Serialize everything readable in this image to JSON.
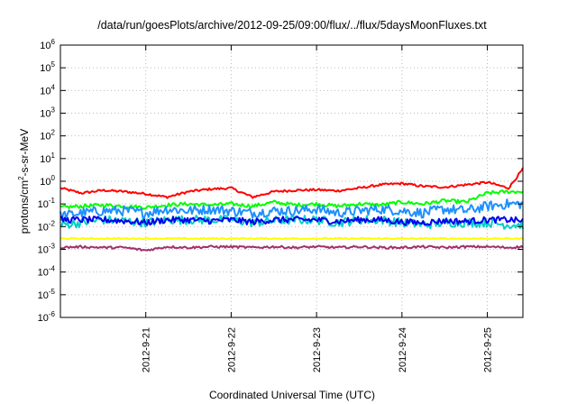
{
  "chart_data": {
    "type": "line",
    "title": "/data/run/goesPlots/archive/2012-09-25/09:00/flux/../flux/5daysMoonFluxes.txt",
    "xlabel": "Coordinated Universal Time (UTC)",
    "ylabel": "protons/cm²-s-sr-MeV",
    "yscale": "log",
    "ylim": [
      1e-06,
      1000000
    ],
    "xlim": [
      "2012-09-20 00:00",
      "2012-09-25 10:00"
    ],
    "x_ticks": [
      "2012-9-21",
      "2012-9-22",
      "2012-9-23",
      "2012-9-24",
      "2012-9-25"
    ],
    "y_ticks": [
      {
        "base": "10",
        "exp": "-6",
        "value": 1e-06
      },
      {
        "base": "10",
        "exp": "-5",
        "value": 1e-05
      },
      {
        "base": "10",
        "exp": "-4",
        "value": 0.0001
      },
      {
        "base": "10",
        "exp": "-3",
        "value": 0.001
      },
      {
        "base": "10",
        "exp": "-2",
        "value": 0.01
      },
      {
        "base": "10",
        "exp": "-1",
        "value": 0.1
      },
      {
        "base": "10",
        "exp": "0",
        "value": 1
      },
      {
        "base": "10",
        "exp": "1",
        "value": 10
      },
      {
        "base": "10",
        "exp": "2",
        "value": 100
      },
      {
        "base": "10",
        "exp": "3",
        "value": 1000
      },
      {
        "base": "10",
        "exp": "4",
        "value": 10000
      },
      {
        "base": "10",
        "exp": "5",
        "value": 100000
      },
      {
        "base": "10",
        "exp": "6",
        "value": 1000000
      }
    ],
    "grid": true,
    "x": [
      "2012-09-20 00:00",
      "2012-09-20 06:00",
      "2012-09-20 12:00",
      "2012-09-20 18:00",
      "2012-09-21 00:00",
      "2012-09-21 06:00",
      "2012-09-21 12:00",
      "2012-09-21 18:00",
      "2012-09-22 00:00",
      "2012-09-22 06:00",
      "2012-09-22 12:00",
      "2012-09-22 18:00",
      "2012-09-23 00:00",
      "2012-09-23 06:00",
      "2012-09-23 12:00",
      "2012-09-23 18:00",
      "2012-09-24 00:00",
      "2012-09-24 06:00",
      "2012-09-24 12:00",
      "2012-09-24 18:00",
      "2012-09-25 00:00",
      "2012-09-25 06:00",
      "2012-09-25 10:00"
    ],
    "series": [
      {
        "color": "#ff0000",
        "noise": 0.05,
        "values": [
          0.5,
          0.3,
          0.4,
          0.35,
          0.28,
          0.2,
          0.35,
          0.45,
          0.5,
          0.2,
          0.35,
          0.4,
          0.42,
          0.38,
          0.5,
          0.7,
          0.8,
          0.6,
          0.55,
          0.7,
          0.9,
          0.5,
          3.5
        ]
      },
      {
        "color": "#00ff00",
        "noise": 0.08,
        "values": [
          0.07,
          0.08,
          0.09,
          0.08,
          0.07,
          0.09,
          0.1,
          0.09,
          0.1,
          0.08,
          0.12,
          0.09,
          0.1,
          0.08,
          0.1,
          0.09,
          0.12,
          0.1,
          0.14,
          0.12,
          0.3,
          0.35,
          0.35
        ]
      },
      {
        "color": "#1e90ff",
        "noise": 0.22,
        "values": [
          0.03,
          0.04,
          0.05,
          0.05,
          0.04,
          0.06,
          0.05,
          0.06,
          0.05,
          0.04,
          0.05,
          0.05,
          0.06,
          0.04,
          0.05,
          0.06,
          0.05,
          0.04,
          0.06,
          0.05,
          0.08,
          0.1,
          0.1
        ]
      },
      {
        "color": "#00d0c8",
        "noise": 0.2,
        "values": [
          0.012,
          0.015,
          0.02,
          0.018,
          0.015,
          0.02,
          0.02,
          0.02,
          0.02,
          0.015,
          0.018,
          0.02,
          0.02,
          0.015,
          0.02,
          0.02,
          0.015,
          0.012,
          0.015,
          0.015,
          0.015,
          0.012,
          0.012
        ]
      },
      {
        "color": "#0000ee",
        "noise": 0.14,
        "values": [
          0.02,
          0.02,
          0.02,
          0.018,
          0.015,
          0.02,
          0.02,
          0.018,
          0.02,
          0.016,
          0.02,
          0.02,
          0.02,
          0.017,
          0.02,
          0.02,
          0.016,
          0.015,
          0.018,
          0.017,
          0.02,
          0.02,
          0.018
        ]
      },
      {
        "color": "#ffff00",
        "noise": 0.03,
        "values": [
          0.003,
          0.003,
          0.003,
          0.003,
          0.003,
          0.003,
          0.003,
          0.003,
          0.003,
          0.003,
          0.003,
          0.003,
          0.003,
          0.003,
          0.003,
          0.003,
          0.003,
          0.003,
          0.003,
          0.003,
          0.003,
          0.003,
          0.003
        ]
      },
      {
        "color": "#a0306e",
        "noise": 0.05,
        "values": [
          0.0012,
          0.0013,
          0.0012,
          0.0012,
          0.0009,
          0.0013,
          0.0012,
          0.0013,
          0.0013,
          0.0012,
          0.0013,
          0.0012,
          0.0013,
          0.0012,
          0.0013,
          0.0012,
          0.0012,
          0.0013,
          0.0012,
          0.0013,
          0.0013,
          0.0012,
          0.0013
        ]
      }
    ]
  }
}
